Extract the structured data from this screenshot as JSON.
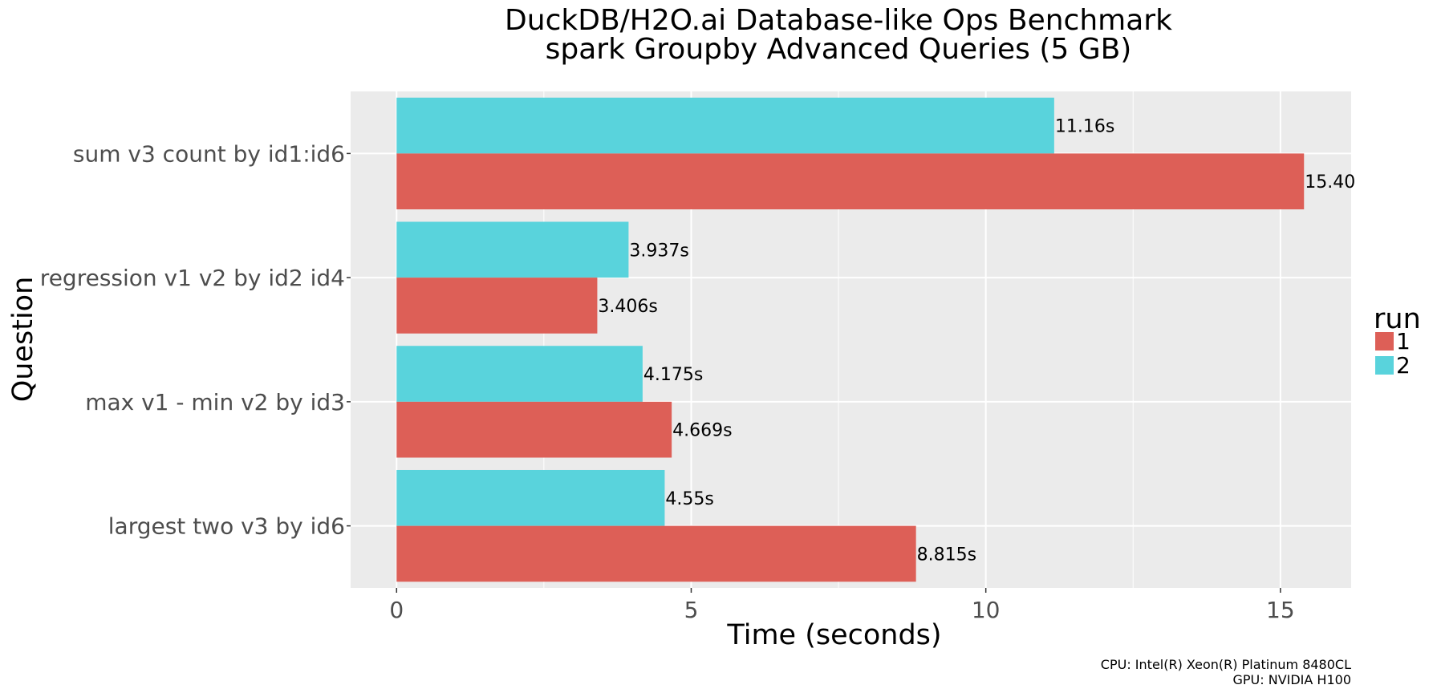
{
  "chart_data": {
    "type": "bar",
    "orientation": "horizontal",
    "title": [
      "DuckDB/H2O.ai Database-like Ops Benchmark",
      "spark Groupby Advanced Queries (5 GB)"
    ],
    "xlabel": "Time (seconds)",
    "ylabel": "Question",
    "xlim": [
      -0.78,
      16.2
    ],
    "x_ticks": [
      0,
      5,
      10,
      15
    ],
    "grid": true,
    "panel_background": "#ebebeb",
    "categories": [
      "sum v3 count by id1:id6",
      "regression v1 v2 by id2 id4",
      "max v1 - min v2 by id3",
      "largest two v3 by id6"
    ],
    "series": [
      {
        "name": "1",
        "color": "#dd5f57",
        "values": [
          15.4,
          3.406,
          4.669,
          8.815
        ],
        "labels": [
          "15.40",
          "3.406s",
          "4.669s",
          "8.815s"
        ]
      },
      {
        "name": "2",
        "color": "#59d3dc",
        "values": [
          11.16,
          3.937,
          4.175,
          4.55
        ],
        "labels": [
          "11.16s",
          "3.937s",
          "4.175s",
          "4.55s"
        ]
      }
    ],
    "legend": {
      "title": "run",
      "placement": "right",
      "entries": [
        "1",
        "2"
      ]
    },
    "caption": [
      "CPU: Intel(R) Xeon(R) Platinum 8480CL",
      "GPU: NVIDIA H100"
    ]
  }
}
